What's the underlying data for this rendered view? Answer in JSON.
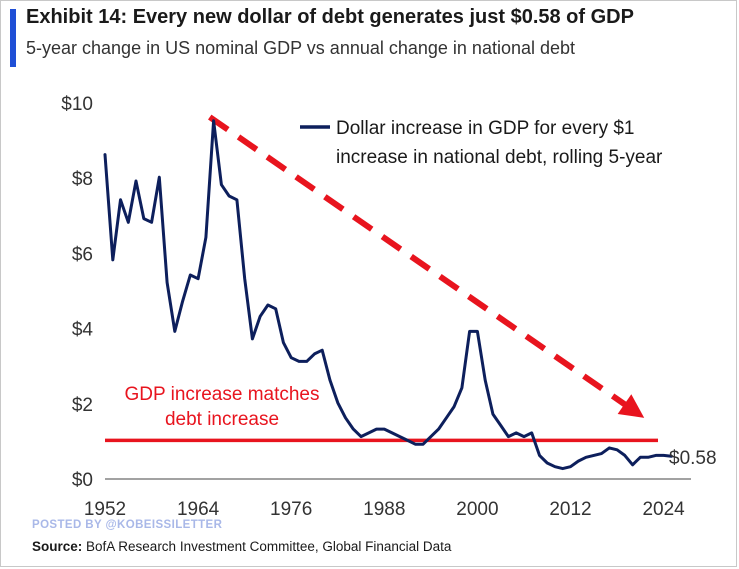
{
  "header": {
    "title": "Exhibit 14: Every new dollar of debt generates just $0.58 of GDP",
    "subtitle": "5-year change in US nominal GDP vs annual change in national debt"
  },
  "footer": {
    "watermark": "POSTED BY @KOBEISSILETTER",
    "source_label": "Source:",
    "source_text": " BofA Research Investment Committee, Global Financial Data"
  },
  "colors": {
    "series": "#0d1f5c",
    "threshold": "#e8141e",
    "arrow": "#e8141e",
    "annotation": "#e8141e",
    "axis_text": "#333333",
    "title_accent": "#1f4fd6"
  },
  "chart_data": {
    "type": "line",
    "title": "Exhibit 14: Every new dollar of debt generates just $0.58 of GDP",
    "subtitle": "5-year change in US nominal GDP vs annual change in national debt",
    "xlabel": "",
    "ylabel": "",
    "xlim": [
      1952,
      2026.5
    ],
    "ylim": [
      0,
      10
    ],
    "x_ticks": [
      1952,
      1964,
      1976,
      1988,
      2000,
      2012,
      2024
    ],
    "y_ticks": [
      0,
      2,
      4,
      6,
      8,
      10
    ],
    "y_tick_labels": [
      "$0",
      "$2",
      "$4",
      "$6",
      "$8",
      "$10"
    ],
    "grid": false,
    "legend_position": "top-right",
    "series": [
      {
        "name": "Dollar increase in GDP for every $1 increase in national debt, rolling 5-year",
        "legend_lines": [
          "Dollar increase in GDP for every $1",
          "increase in national debt, rolling 5-year"
        ],
        "x": [
          1952,
          1953,
          1954,
          1955,
          1956,
          1957,
          1958,
          1959,
          1960,
          1961,
          1962,
          1963,
          1964,
          1965,
          1966,
          1967,
          1968,
          1969,
          1970,
          1971,
          1972,
          1973,
          1974,
          1975,
          1976,
          1977,
          1978,
          1979,
          1980,
          1981,
          1982,
          1983,
          1984,
          1985,
          1986,
          1987,
          1988,
          1989,
          1990,
          1991,
          1992,
          1993,
          1994,
          1995,
          1996,
          1997,
          1998,
          1999,
          2000,
          2001,
          2002,
          2003,
          2004,
          2005,
          2006,
          2007,
          2008,
          2009,
          2010,
          2011,
          2012,
          2013,
          2014,
          2015,
          2016,
          2017,
          2018,
          2019,
          2020,
          2021,
          2022,
          2023,
          2024,
          2025
        ],
        "y": [
          8.6,
          5.8,
          7.4,
          6.8,
          7.9,
          6.9,
          6.8,
          8.0,
          5.2,
          3.9,
          4.7,
          5.4,
          5.3,
          6.4,
          9.5,
          7.8,
          7.5,
          7.4,
          5.3,
          3.7,
          4.3,
          4.6,
          4.5,
          3.6,
          3.2,
          3.1,
          3.1,
          3.3,
          3.4,
          2.6,
          2.0,
          1.6,
          1.3,
          1.1,
          1.2,
          1.3,
          1.3,
          1.2,
          1.1,
          1.0,
          0.9,
          0.9,
          1.1,
          1.3,
          1.6,
          1.9,
          2.4,
          3.9,
          3.9,
          2.6,
          1.7,
          1.4,
          1.1,
          1.2,
          1.1,
          1.2,
          0.6,
          0.4,
          0.3,
          0.25,
          0.3,
          0.45,
          0.55,
          0.6,
          0.65,
          0.8,
          0.75,
          0.6,
          0.35,
          0.55,
          0.55,
          0.6,
          0.6,
          0.58
        ]
      }
    ],
    "threshold_line": {
      "y": 1.0,
      "label_lines": [
        "GDP increase matches",
        "debt increase"
      ]
    },
    "trend_arrow": {
      "from": [
        1965.5,
        9.6
      ],
      "to": [
        2021.5,
        1.6
      ]
    },
    "end_value_label": "$0.58"
  }
}
